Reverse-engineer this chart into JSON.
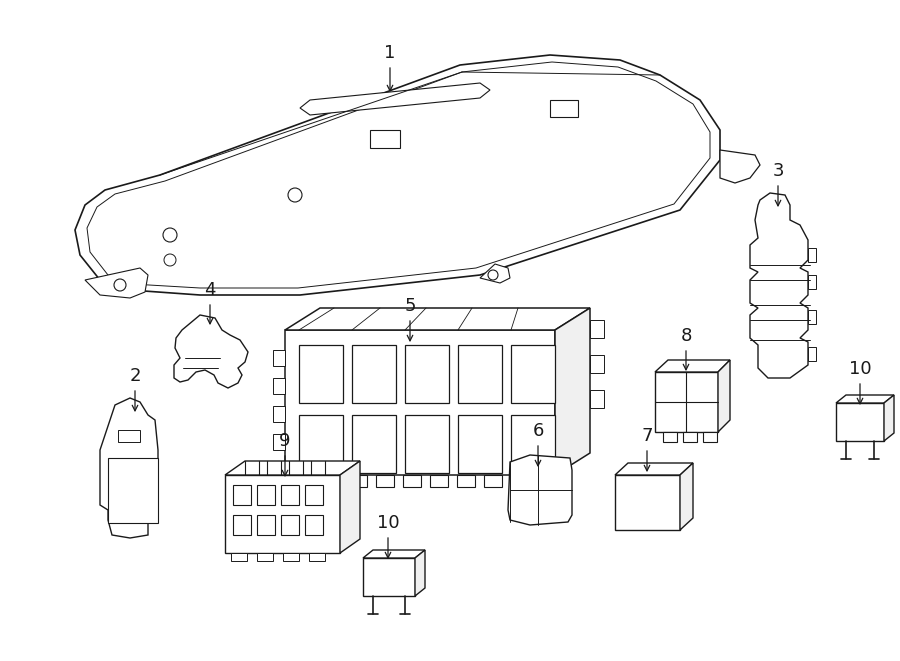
{
  "background_color": "#ffffff",
  "line_color": "#1a1a1a",
  "line_width": 1.0,
  "fig_width": 9.0,
  "fig_height": 6.61,
  "dpi": 100,
  "thin_lw": 0.7,
  "thick_lw": 1.2
}
